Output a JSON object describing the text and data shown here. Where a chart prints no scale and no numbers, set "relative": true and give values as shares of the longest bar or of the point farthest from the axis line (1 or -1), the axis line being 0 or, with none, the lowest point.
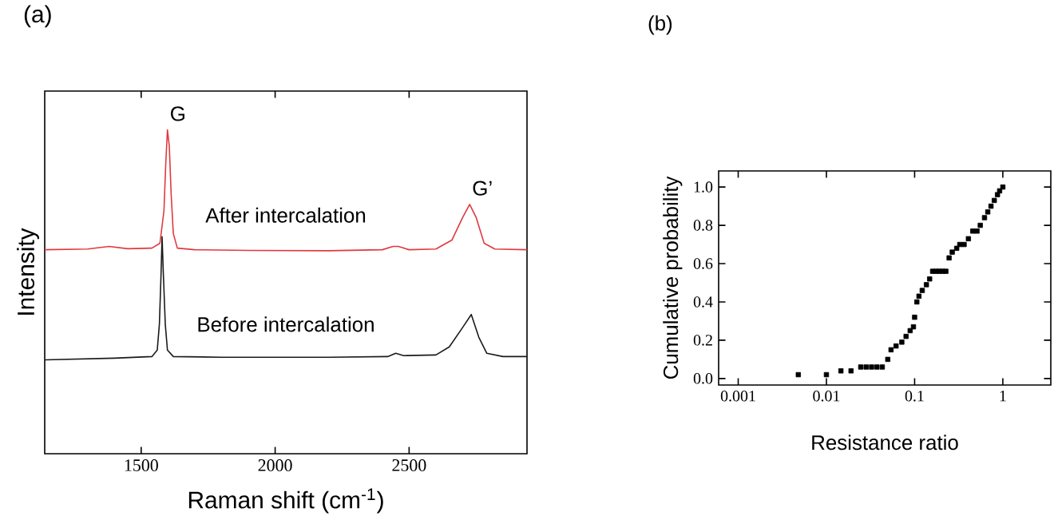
{
  "chart_data": [
    {
      "type": "line",
      "title": "(a)",
      "xlabel": "Raman shift (cm$^{-1}$)",
      "ylabel": "Intensity",
      "relative": true,
      "xlim": [
        1140,
        2940
      ],
      "xticks": [
        1500,
        2000,
        2500
      ],
      "marker": "none",
      "annotations": [
        {
          "text": "G",
          "x": 1598,
          "y": 1.0
        },
        {
          "text": "G’",
          "x": 2726,
          "y": 0.77
        }
      ],
      "series": [
        {
          "name": "After intercalation",
          "color": "#e0393e",
          "x": [
            1140,
            1300,
            1380,
            1450,
            1540,
            1570,
            1585,
            1592,
            1598,
            1605,
            1612,
            1620,
            1635,
            1700,
            1900,
            2200,
            2400,
            2440,
            2460,
            2500,
            2600,
            2660,
            2700,
            2726,
            2750,
            2780,
            2820,
            2940
          ],
          "values": [
            0.63,
            0.632,
            0.64,
            0.633,
            0.635,
            0.65,
            0.75,
            0.9,
            1.0,
            0.95,
            0.8,
            0.68,
            0.635,
            0.63,
            0.628,
            0.627,
            0.63,
            0.64,
            0.64,
            0.63,
            0.632,
            0.66,
            0.73,
            0.77,
            0.73,
            0.65,
            0.632,
            0.63
          ]
        },
        {
          "name": "Before intercalation",
          "color": "#1a1a1a",
          "x": [
            1140,
            1400,
            1540,
            1560,
            1568,
            1574,
            1578,
            1583,
            1590,
            1598,
            1620,
            1800,
            2200,
            2420,
            2450,
            2480,
            2600,
            2650,
            2700,
            2732,
            2760,
            2790,
            2850,
            2940
          ],
          "values": [
            0.29,
            0.295,
            0.3,
            0.32,
            0.4,
            0.55,
            0.67,
            0.55,
            0.4,
            0.32,
            0.3,
            0.298,
            0.298,
            0.3,
            0.31,
            0.303,
            0.305,
            0.33,
            0.39,
            0.43,
            0.36,
            0.31,
            0.3,
            0.3
          ]
        }
      ]
    },
    {
      "type": "scatter",
      "title": "(b)",
      "xlabel": "Resistance ratio",
      "ylabel": "Cumulative probability",
      "log": "x",
      "xlim": [
        0.0006,
        3.5
      ],
      "xticks": [
        0.001,
        0.01,
        0.1,
        1
      ],
      "ylim": [
        -0.034,
        1.084
      ],
      "yticks": [
        {
          "value": 0,
          "label": "0.0"
        },
        {
          "value": 0.2,
          "label": "0.2"
        },
        {
          "value": 0.4,
          "label": "0.4"
        },
        {
          "value": 0.6,
          "label": "0.6"
        },
        {
          "value": 0.8,
          "label": "0.8"
        },
        {
          "value": 1,
          "label": "1.0"
        }
      ],
      "marker": "square",
      "series": [
        {
          "color": "#000000",
          "x": [
            0.0048,
            0.01,
            0.0146,
            0.019,
            0.0245,
            0.0282,
            0.0325,
            0.0374,
            0.043,
            0.0496,
            0.054,
            0.0616,
            0.0716,
            0.08,
            0.089,
            0.097,
            0.1,
            0.106,
            0.112,
            0.122,
            0.136,
            0.148,
            0.16,
            0.175,
            0.19,
            0.207,
            0.226,
            0.246,
            0.267,
            0.3,
            0.325,
            0.364,
            0.407,
            0.456,
            0.51,
            0.555,
            0.62,
            0.675,
            0.734,
            0.8,
            0.87,
            0.92,
            1.0
          ],
          "values": [
            0.02,
            0.02,
            0.04,
            0.04,
            0.06,
            0.06,
            0.06,
            0.06,
            0.06,
            0.1,
            0.15,
            0.17,
            0.19,
            0.22,
            0.25,
            0.27,
            0.32,
            0.4,
            0.43,
            0.46,
            0.49,
            0.52,
            0.56,
            0.56,
            0.56,
            0.56,
            0.56,
            0.63,
            0.66,
            0.68,
            0.7,
            0.7,
            0.73,
            0.77,
            0.77,
            0.8,
            0.84,
            0.87,
            0.9,
            0.93,
            0.96,
            0.98,
            1.0
          ]
        }
      ]
    }
  ]
}
